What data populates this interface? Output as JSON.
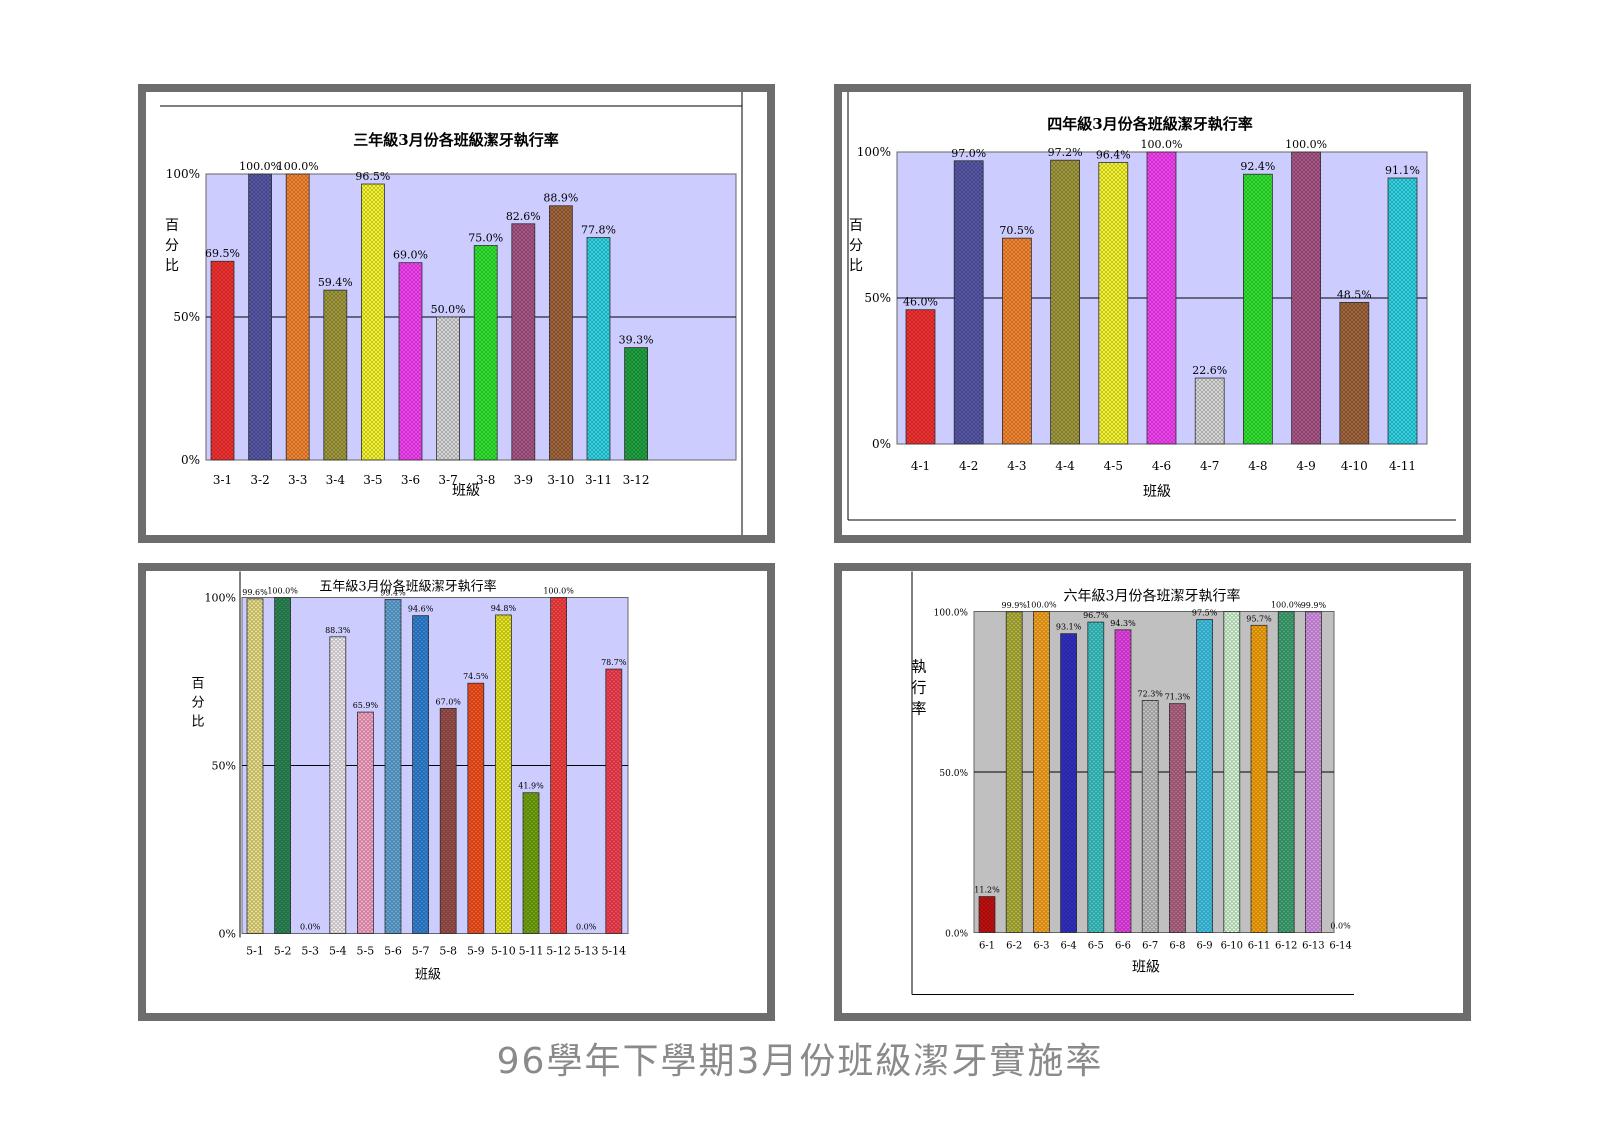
{
  "caption": "96學年下學期3月份班級潔牙實施率",
  "chart_data": [
    {
      "type": "bar",
      "title": "三年級3月份各班級潔牙執行率",
      "xlabel": "班級",
      "ylabel": "百分比",
      "ylim": [
        0,
        100
      ],
      "yticks": [
        "0%",
        "50%",
        "100%"
      ],
      "plot_bg": "#ccccff",
      "categories": [
        "3-1",
        "3-2",
        "3-3",
        "3-4",
        "3-5",
        "3-6",
        "3-7",
        "3-8",
        "3-9",
        "3-10",
        "3-11",
        "3-12"
      ],
      "values": [
        69.5,
        100,
        100,
        59.4,
        96.5,
        69.0,
        50.0,
        75.0,
        82.6,
        88.9,
        77.8,
        39.3
      ],
      "labels": [
        "69.5%",
        "100.0%",
        "100.0%",
        "59.4%",
        "96.5%",
        "69.0%",
        "50.0%",
        "75.0%",
        "82.6%",
        "88.9%",
        "77.8%",
        "39.3%"
      ],
      "colors": [
        "#ff3333",
        "#5b5bb0",
        "#ff8c33",
        "#a8a040",
        "#ffff33",
        "#ff44ff",
        "#e0e0e0",
        "#33ee33",
        "#b05a8c",
        "#a86a40",
        "#33ddee",
        "#22aa44"
      ]
    },
    {
      "type": "bar",
      "title": "四年級3月份各班級潔牙執行率",
      "xlabel": "班級",
      "ylabel": "百分比",
      "ylim": [
        0,
        100
      ],
      "yticks": [
        "0%",
        "50%",
        "100%"
      ],
      "plot_bg": "#ccccff",
      "categories": [
        "4-1",
        "4-2",
        "4-3",
        "4-4",
        "4-5",
        "4-6",
        "4-7",
        "4-8",
        "4-9",
        "4-10",
        "4-11"
      ],
      "values": [
        46.0,
        97.0,
        70.5,
        97.2,
        96.4,
        100,
        22.6,
        92.4,
        100,
        48.5,
        91.1
      ],
      "labels": [
        "46.0%",
        "97.0%",
        "70.5%",
        "97.2%",
        "96.4%",
        "100.0%",
        "22.6%",
        "92.4%",
        "100.0%",
        "48.5%",
        "91.1%"
      ],
      "colors": [
        "#ff3333",
        "#5b5bb0",
        "#ff8c33",
        "#a8a040",
        "#ffff33",
        "#ff44ff",
        "#e0e0e0",
        "#33ee33",
        "#b05a8c",
        "#a86a40",
        "#33ddee"
      ]
    },
    {
      "type": "bar",
      "title": "五年級3月份各班級潔牙執行率",
      "xlabel": "班級",
      "ylabel": "百分比",
      "ylim": [
        0,
        100
      ],
      "yticks": [
        "0%",
        "50%",
        "100%"
      ],
      "plot_bg": "#ccccff",
      "categories": [
        "5-1",
        "5-2",
        "5-3",
        "5-4",
        "5-5",
        "5-6",
        "5-7",
        "5-8",
        "5-9",
        "5-10",
        "5-11",
        "5-12",
        "5-13",
        "5-14"
      ],
      "values": [
        99.6,
        100,
        0,
        88.3,
        65.9,
        99.4,
        94.6,
        67.0,
        74.5,
        94.8,
        41.9,
        100,
        0,
        78.7
      ],
      "labels": [
        "99.6%",
        "100.0%",
        "0.0%",
        "88.3%",
        "65.9%",
        "99.4%",
        "94.6%",
        "67.0%",
        "74.5%",
        "94.8%",
        "41.9%",
        "100.0%",
        "0.0%",
        "78.7%"
      ],
      "colors": [
        "#f0e68c",
        "#2e8b57",
        "#dddddd",
        "#f5f0f5",
        "#ffaacc",
        "#66aadd",
        "#3388dd",
        "#a0524d",
        "#ff5522",
        "#eeee22",
        "#77aa11",
        "#ff4444",
        "#dddddd",
        "#ff4455"
      ]
    },
    {
      "type": "bar",
      "title": "六年級3月份各班潔牙執行率",
      "xlabel": "班級",
      "ylabel": "執行率",
      "ylim": [
        0,
        100
      ],
      "yticks": [
        "0.0%",
        "50.0%",
        "100.0%"
      ],
      "plot_bg": "#c0c0c0",
      "categories": [
        "6-1",
        "6-2",
        "6-3",
        "6-4",
        "6-5",
        "6-6",
        "6-7",
        "6-8",
        "6-9",
        "6-10",
        "6-11",
        "6-12",
        "6-13",
        "6-14"
      ],
      "values": [
        11.2,
        99.9,
        100,
        93.1,
        96.7,
        94.3,
        72.3,
        71.3,
        97.5,
        100,
        95.7,
        100,
        99.9,
        0
      ],
      "labels": [
        "11.2%",
        "99.9%",
        "100.0%",
        "93.1%",
        "96.7%",
        "94.3%",
        "72.3%",
        "71.3%",
        "97.5%",
        "",
        "95.7%",
        "100.0%",
        "99.9%",
        "0.0%"
      ],
      "colors": [
        "#cc1111",
        "#b8b840",
        "#ffaa22",
        "#3333cc",
        "#44cccc",
        "#ee44ee",
        "#c8c8c8",
        "#b86a8c",
        "#44ccee",
        "#ddffdd",
        "#ffaa11",
        "#44aa77",
        "#dd99ee",
        "#dddddd"
      ]
    }
  ]
}
